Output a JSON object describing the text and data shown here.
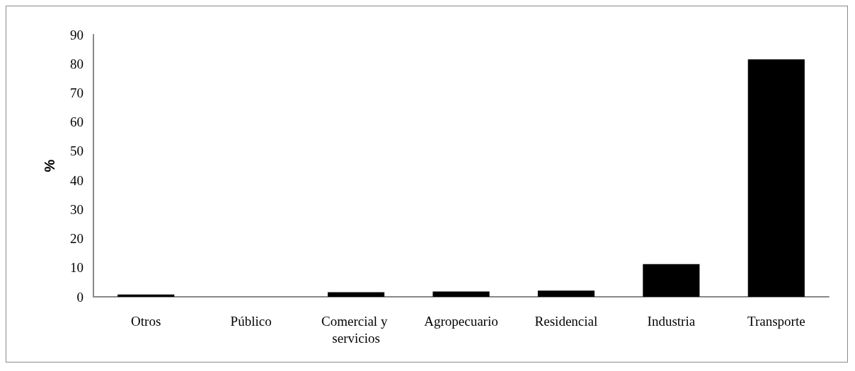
{
  "chart_data": {
    "type": "bar",
    "ylabel": "%",
    "categories": [
      "Otros",
      "Público",
      "Comercial y servicios",
      "Agropecuario",
      "Residencial",
      "Industria",
      "Transporte"
    ],
    "values": [
      0.8,
      0,
      1.6,
      1.8,
      2.1,
      11.2,
      81.5
    ],
    "color": "#000000",
    "ylim": [
      0,
      90
    ],
    "yticks": [
      0,
      10,
      20,
      30,
      40,
      50,
      60,
      70,
      80,
      90
    ],
    "grid": false
  }
}
